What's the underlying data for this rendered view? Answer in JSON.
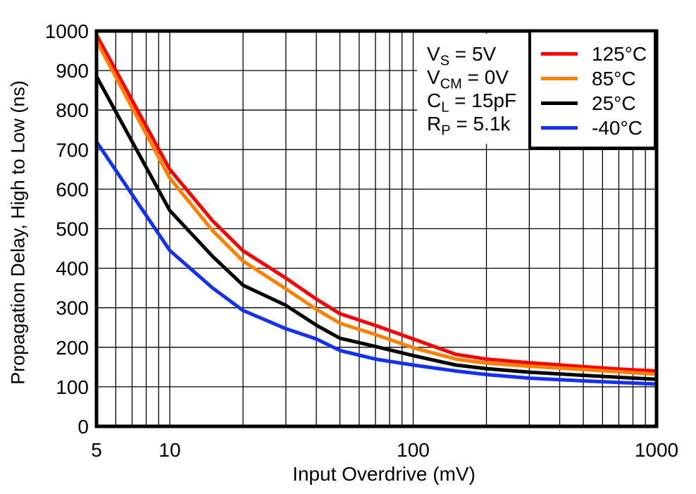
{
  "chart_data": {
    "type": "line",
    "title": "",
    "xlabel": "Input Overdrive (mV)",
    "ylabel": "Propagation Delay, High to Low (ns)",
    "xscale": "log",
    "xlim": [
      5,
      1000
    ],
    "ylim": [
      0,
      1000
    ],
    "x_tick_labels": [
      5,
      10,
      100,
      1000
    ],
    "y_ticks": [
      0,
      100,
      200,
      300,
      400,
      500,
      600,
      700,
      800,
      900,
      1000
    ],
    "grid": "on",
    "legend_position": "top-right",
    "frame_color": "#000000",
    "grid_color": "#000000",
    "x": [
      5,
      10,
      15,
      20,
      30,
      40,
      50,
      70,
      100,
      150,
      200,
      300,
      500,
      700,
      1000
    ],
    "series": [
      {
        "name": "125°C",
        "color": "#ff0000",
        "values": [
          990,
          650,
          520,
          444,
          375,
          322,
          285,
          255,
          221,
          182,
          170,
          161,
          151,
          145,
          140
        ]
      },
      {
        "name": "85°C",
        "color": "#ff8000",
        "values": [
          975,
          628,
          495,
          418,
          348,
          296,
          261,
          232,
          199,
          170,
          160,
          152,
          144,
          138,
          132
        ]
      },
      {
        "name": "25°C",
        "color": "#000000",
        "values": [
          885,
          546,
          430,
          357,
          306,
          256,
          223,
          202,
          179,
          155,
          146,
          137,
          129,
          124,
          119
        ]
      },
      {
        "name": "-40°C",
        "color": "#1430f0",
        "values": [
          720,
          445,
          350,
          293,
          247,
          221,
          192,
          170,
          155,
          140,
          131,
          122,
          115,
          111,
          107
        ]
      }
    ],
    "conditions": [
      {
        "base": "V",
        "sub": "S",
        "rest": " = 5V"
      },
      {
        "base": "V",
        "sub": "CM",
        "rest": " = 0V"
      },
      {
        "base": "C",
        "sub": "L",
        "rest": " = 15pF"
      },
      {
        "base": "R",
        "sub": "P",
        "rest": " = 5.1k"
      }
    ]
  }
}
